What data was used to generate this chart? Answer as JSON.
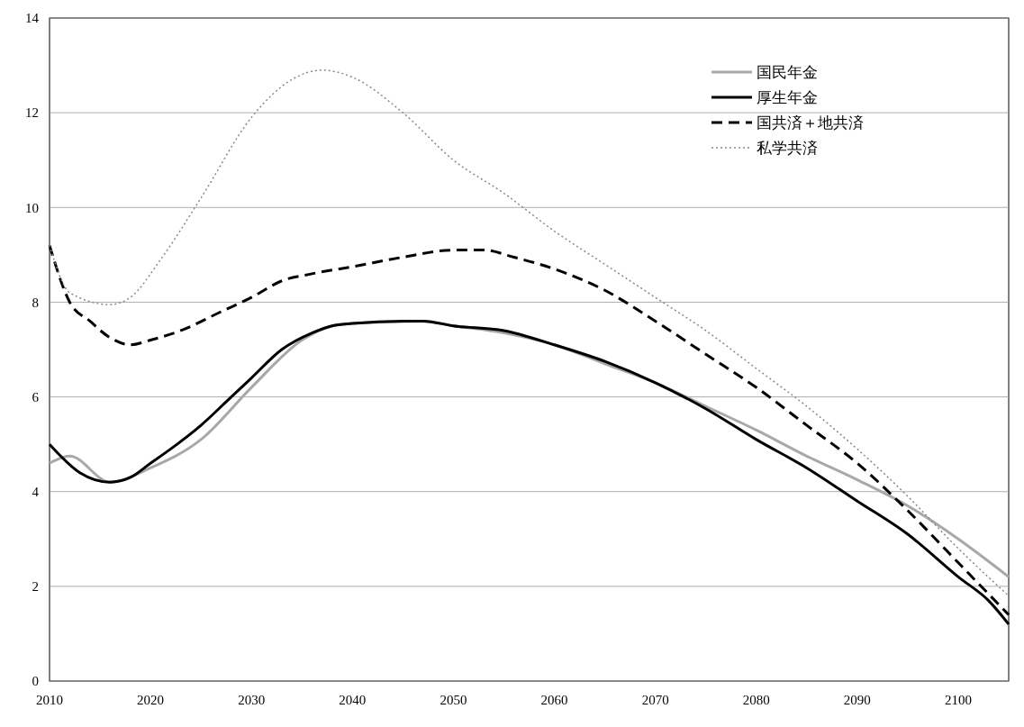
{
  "chart_data": {
    "type": "line",
    "xlim": [
      2010,
      2105
    ],
    "xticks": [
      2010,
      2020,
      2030,
      2040,
      2050,
      2060,
      2070,
      2080,
      2090,
      2100
    ],
    "ylim": [
      0,
      14
    ],
    "yticks": [
      0,
      2,
      4,
      6,
      8,
      10,
      12,
      14
    ],
    "grid": "y",
    "legend": "top right",
    "series": [
      {
        "name": "国民年金",
        "color": "#a8a8a8",
        "line_style": "solid",
        "x": [
          2010,
          2012,
          2016,
          2020,
          2025,
          2030,
          2035,
          2038,
          2040,
          2047,
          2050,
          2055,
          2060,
          2065,
          2070,
          2075,
          2080,
          2085,
          2090,
          2095,
          2100,
          2105
        ],
        "values": [
          4.6,
          4.75,
          4.2,
          4.5,
          5.1,
          6.2,
          7.2,
          7.5,
          7.55,
          7.6,
          7.5,
          7.35,
          7.1,
          6.7,
          6.3,
          5.8,
          5.3,
          4.75,
          4.25,
          3.7,
          3.0,
          2.2
        ]
      },
      {
        "name": "厚生年金",
        "color": "#000000",
        "line_style": "solid",
        "x": [
          2010,
          2013,
          2016,
          2018,
          2020,
          2022,
          2025,
          2028,
          2030,
          2033,
          2036,
          2038,
          2040,
          2045,
          2047,
          2050,
          2055,
          2060,
          2065,
          2070,
          2075,
          2080,
          2085,
          2090,
          2095,
          2100,
          2103,
          2105
        ],
        "values": [
          5.0,
          4.4,
          4.2,
          4.3,
          4.6,
          4.9,
          5.4,
          6.0,
          6.4,
          7.0,
          7.35,
          7.5,
          7.55,
          7.6,
          7.6,
          7.5,
          7.4,
          7.1,
          6.75,
          6.3,
          5.75,
          5.1,
          4.5,
          3.8,
          3.1,
          2.2,
          1.7,
          1.2
        ]
      },
      {
        "name": "国共済＋地共済",
        "color": "#000000",
        "line_style": "dashed",
        "x": [
          2010,
          2012,
          2014,
          2016,
          2018,
          2020,
          2023,
          2027,
          2030,
          2033,
          2036,
          2040,
          2045,
          2050,
          2053,
          2056,
          2060,
          2065,
          2070,
          2075,
          2080,
          2085,
          2090,
          2095,
          2100,
          2105
        ],
        "values": [
          9.2,
          8.0,
          7.6,
          7.25,
          7.1,
          7.2,
          7.4,
          7.8,
          8.1,
          8.45,
          8.6,
          8.75,
          8.95,
          9.1,
          9.1,
          8.95,
          8.7,
          8.25,
          7.6,
          6.9,
          6.2,
          5.4,
          4.6,
          3.6,
          2.5,
          1.4
        ]
      },
      {
        "name": "私学共済",
        "color": "#888888",
        "line_style": "dotted",
        "x": [
          2010,
          2012,
          2016,
          2018,
          2021,
          2025,
          2030,
          2034,
          2037,
          2040,
          2045,
          2050,
          2055,
          2060,
          2065,
          2070,
          2075,
          2080,
          2085,
          2090,
          2095,
          2100,
          2105
        ],
        "values": [
          9.2,
          8.2,
          7.95,
          8.1,
          8.9,
          10.2,
          11.9,
          12.7,
          12.9,
          12.75,
          12.0,
          11.0,
          10.3,
          9.5,
          8.8,
          8.1,
          7.4,
          6.6,
          5.8,
          4.9,
          3.9,
          2.8,
          1.8
        ]
      }
    ]
  }
}
